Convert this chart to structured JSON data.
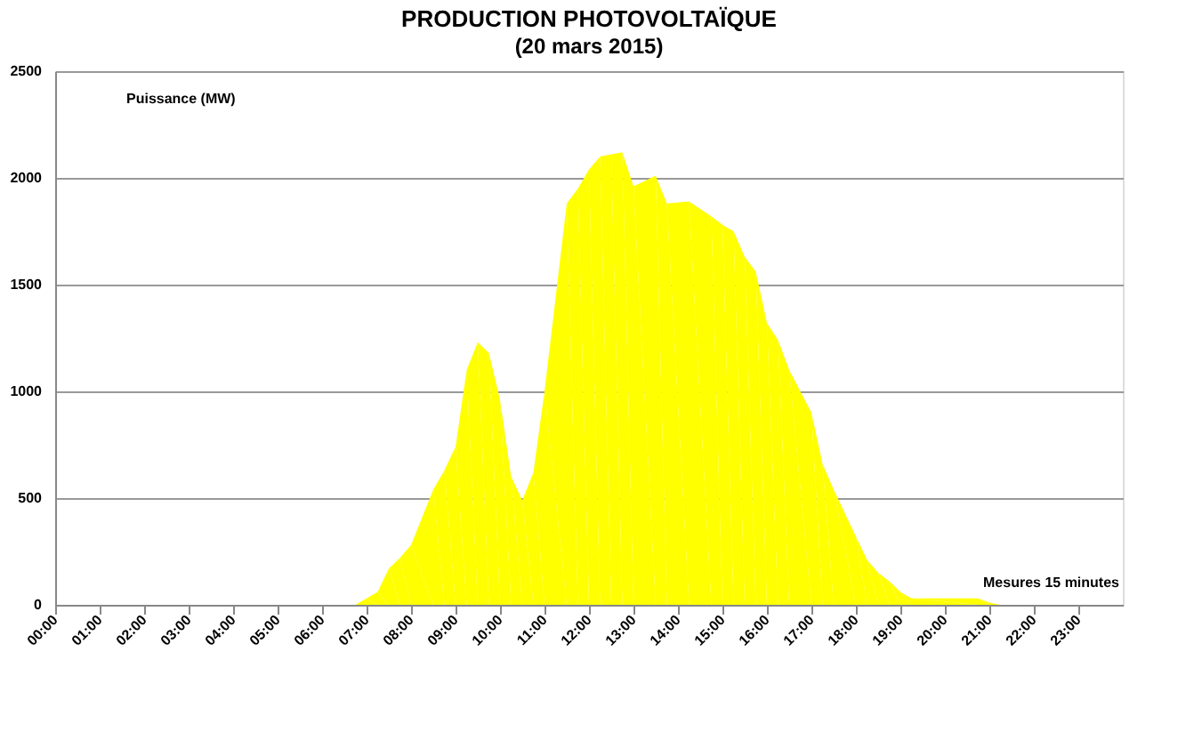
{
  "chart_data": {
    "type": "area",
    "title": "PRODUCTION  PHOTOVOLTAÏQUE",
    "subtitle": "(20 mars 2015)",
    "ylabel": "Puissance (MW)",
    "annotations": [
      "Mesures 15 minutes"
    ],
    "x": [
      0,
      6.75,
      7,
      7.25,
      7.5,
      7.75,
      8,
      8.5,
      8.75,
      9,
      9.25,
      9.5,
      9.75,
      10,
      10.25,
      10.5,
      10.75,
      11,
      11.5,
      11.75,
      12,
      12.25,
      12.5,
      12.75,
      13,
      13.5,
      13.75,
      14.25,
      14.75,
      15,
      15.25,
      15.5,
      15.75,
      16,
      16.25,
      16.5,
      17,
      17.25,
      17.5,
      18,
      18.25,
      18.5,
      18.75,
      19,
      19.25,
      20.75,
      21,
      21.25,
      24
    ],
    "series": [
      {
        "color": "#ffff00",
        "values": [
          0,
          0,
          30,
          60,
          170,
          220,
          280,
          540,
          630,
          740,
          1100,
          1230,
          1180,
          960,
          600,
          490,
          620,
          1000,
          1880,
          1950,
          2040,
          2100,
          2110,
          2120,
          1960,
          2010,
          1880,
          1890,
          1820,
          1780,
          1750,
          1630,
          1560,
          1320,
          1240,
          1100,
          900,
          660,
          540,
          320,
          210,
          150,
          110,
          60,
          30,
          30,
          10,
          0,
          0
        ]
      }
    ],
    "xlim": [
      0,
      24
    ],
    "xticks": [
      {
        "value": 0,
        "label": "00:00"
      },
      {
        "value": 1,
        "label": "01:00"
      },
      {
        "value": 2,
        "label": "02:00"
      },
      {
        "value": 3,
        "label": "03:00"
      },
      {
        "value": 4,
        "label": "04:00"
      },
      {
        "value": 5,
        "label": "05:00"
      },
      {
        "value": 6,
        "label": "06:00"
      },
      {
        "value": 7,
        "label": "07:00"
      },
      {
        "value": 8,
        "label": "08:00"
      },
      {
        "value": 9,
        "label": "09:00"
      },
      {
        "value": 10,
        "label": "10:00"
      },
      {
        "value": 11,
        "label": "11:00"
      },
      {
        "value": 12,
        "label": "12:00"
      },
      {
        "value": 13,
        "label": "13:00"
      },
      {
        "value": 14,
        "label": "14:00"
      },
      {
        "value": 15,
        "label": "15:00"
      },
      {
        "value": 16,
        "label": "16:00"
      },
      {
        "value": 17,
        "label": "17:00"
      },
      {
        "value": 18,
        "label": "18:00"
      },
      {
        "value": 19,
        "label": "19:00"
      },
      {
        "value": 20,
        "label": "20:00"
      },
      {
        "value": 21,
        "label": "21:00"
      },
      {
        "value": 22,
        "label": "22:00"
      },
      {
        "value": 23,
        "label": "23:00"
      }
    ],
    "ylim": [
      0,
      2500
    ],
    "yticks": [
      0,
      500,
      1000,
      1500,
      2000,
      2500
    ],
    "grid": "y"
  }
}
